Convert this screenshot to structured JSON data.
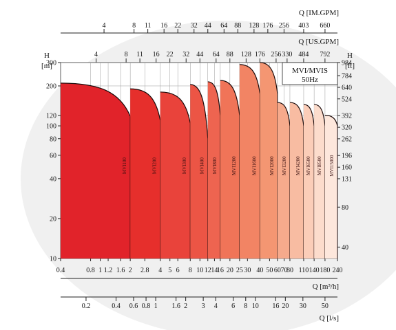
{
  "chart_data": {
    "type": "area",
    "legend": {
      "title": "MVI/MVIS",
      "subtitle": "50Hz",
      "placement": "top-right"
    },
    "x_axis_flow_m3h": {
      "label": "Q [m³/h]",
      "scale": "log",
      "range": [
        0.4,
        240
      ],
      "ticks": [
        "0.4",
        "0.8",
        "1",
        "1.2",
        "1.6",
        "2",
        "2.8",
        "4",
        "5",
        "6",
        "8",
        "10",
        "12",
        "14",
        "16",
        "20",
        "25",
        "30",
        "40",
        "50",
        "60",
        "70",
        "80",
        "110",
        "140",
        "180",
        "240"
      ]
    },
    "x_axis_flow_ls": {
      "label": "Q [l/s]",
      "ticks": [
        "0.2",
        "0.4",
        "0.6",
        "0.8",
        "1",
        "1.6",
        "2",
        "3",
        "4",
        "6",
        "8",
        "10",
        "16",
        "20",
        "30",
        "50"
      ]
    },
    "x_axis_flow_usgpm": {
      "label": "Q [US.GPM]",
      "ticks": [
        "4",
        "8",
        "11",
        "16",
        "22",
        "32",
        "44",
        "64",
        "88",
        "128",
        "176",
        "256",
        "330",
        "484",
        "792"
      ]
    },
    "x_axis_flow_imgpm": {
      "label": "Q [IM.GPM]",
      "ticks": [
        "4",
        "8",
        "11",
        "16",
        "22",
        "32",
        "44",
        "64",
        "88",
        "128",
        "176",
        "256",
        "403",
        "660"
      ]
    },
    "y_axis_head_m": {
      "label": "H",
      "unit": "[m]",
      "scale": "log",
      "range": [
        10,
        300
      ],
      "ticks": [
        "10",
        "20",
        "40",
        "60",
        "80",
        "100",
        "120",
        "200",
        "300"
      ]
    },
    "y_axis_head_ft": {
      "label": "H",
      "unit": "[ft]",
      "ticks": [
        "40",
        "80",
        "131",
        "160",
        "196",
        "262",
        "320",
        "392",
        "524",
        "640",
        "784",
        "984"
      ]
    },
    "grid": true,
    "series": [
      {
        "name": "MVI100",
        "x_range": [
          0.4,
          2
        ],
        "head_max": 210,
        "head_min": 118,
        "color": "#e1232a"
      },
      {
        "name": "MVI200",
        "x_range": [
          2,
          4
        ],
        "head_max": 190,
        "head_min": 110,
        "color": "#e62f2c"
      },
      {
        "name": "MVI300",
        "x_range": [
          4,
          8
        ],
        "head_max": 180,
        "head_min": 105,
        "color": "#e9433b"
      },
      {
        "name": "MVI400",
        "x_range": [
          8,
          12
        ],
        "head_max": 205,
        "head_min": 80,
        "color": "#ec5545"
      },
      {
        "name": "MVI800",
        "x_range": [
          12,
          16
        ],
        "head_max": 215,
        "head_min": 120,
        "color": "#ee6450"
      },
      {
        "name": "MVI1200",
        "x_range": [
          16,
          25
        ],
        "head_max": 220,
        "head_min": 120,
        "color": "#f07458"
      },
      {
        "name": "MVI1600",
        "x_range": [
          25,
          40
        ],
        "head_max": 290,
        "head_min": 175,
        "color": "#f28464"
      },
      {
        "name": "MVI2000",
        "x_range": [
          40,
          60
        ],
        "head_max": 300,
        "head_min": 175,
        "color": "#f49672"
      },
      {
        "name": "MVI3200",
        "x_range": [
          60,
          80
        ],
        "head_max": 150,
        "head_min": 100,
        "color": "#f6aa8c"
      },
      {
        "name": "MVI4200",
        "x_range": [
          80,
          110
        ],
        "head_max": 150,
        "head_min": 100,
        "color": "#f8bca2"
      },
      {
        "name": "MVI6500",
        "x_range": [
          110,
          140
        ],
        "head_max": 145,
        "head_min": 100,
        "color": "#fbcdb8"
      },
      {
        "name": "MVI8500",
        "x_range": [
          140,
          180
        ],
        "head_max": 145,
        "head_min": 100,
        "color": "#fcdccc"
      },
      {
        "name": "MVI15000",
        "x_range": [
          180,
          240
        ],
        "head_max": 120,
        "head_min": 100,
        "color": "#fde7dc"
      }
    ]
  }
}
